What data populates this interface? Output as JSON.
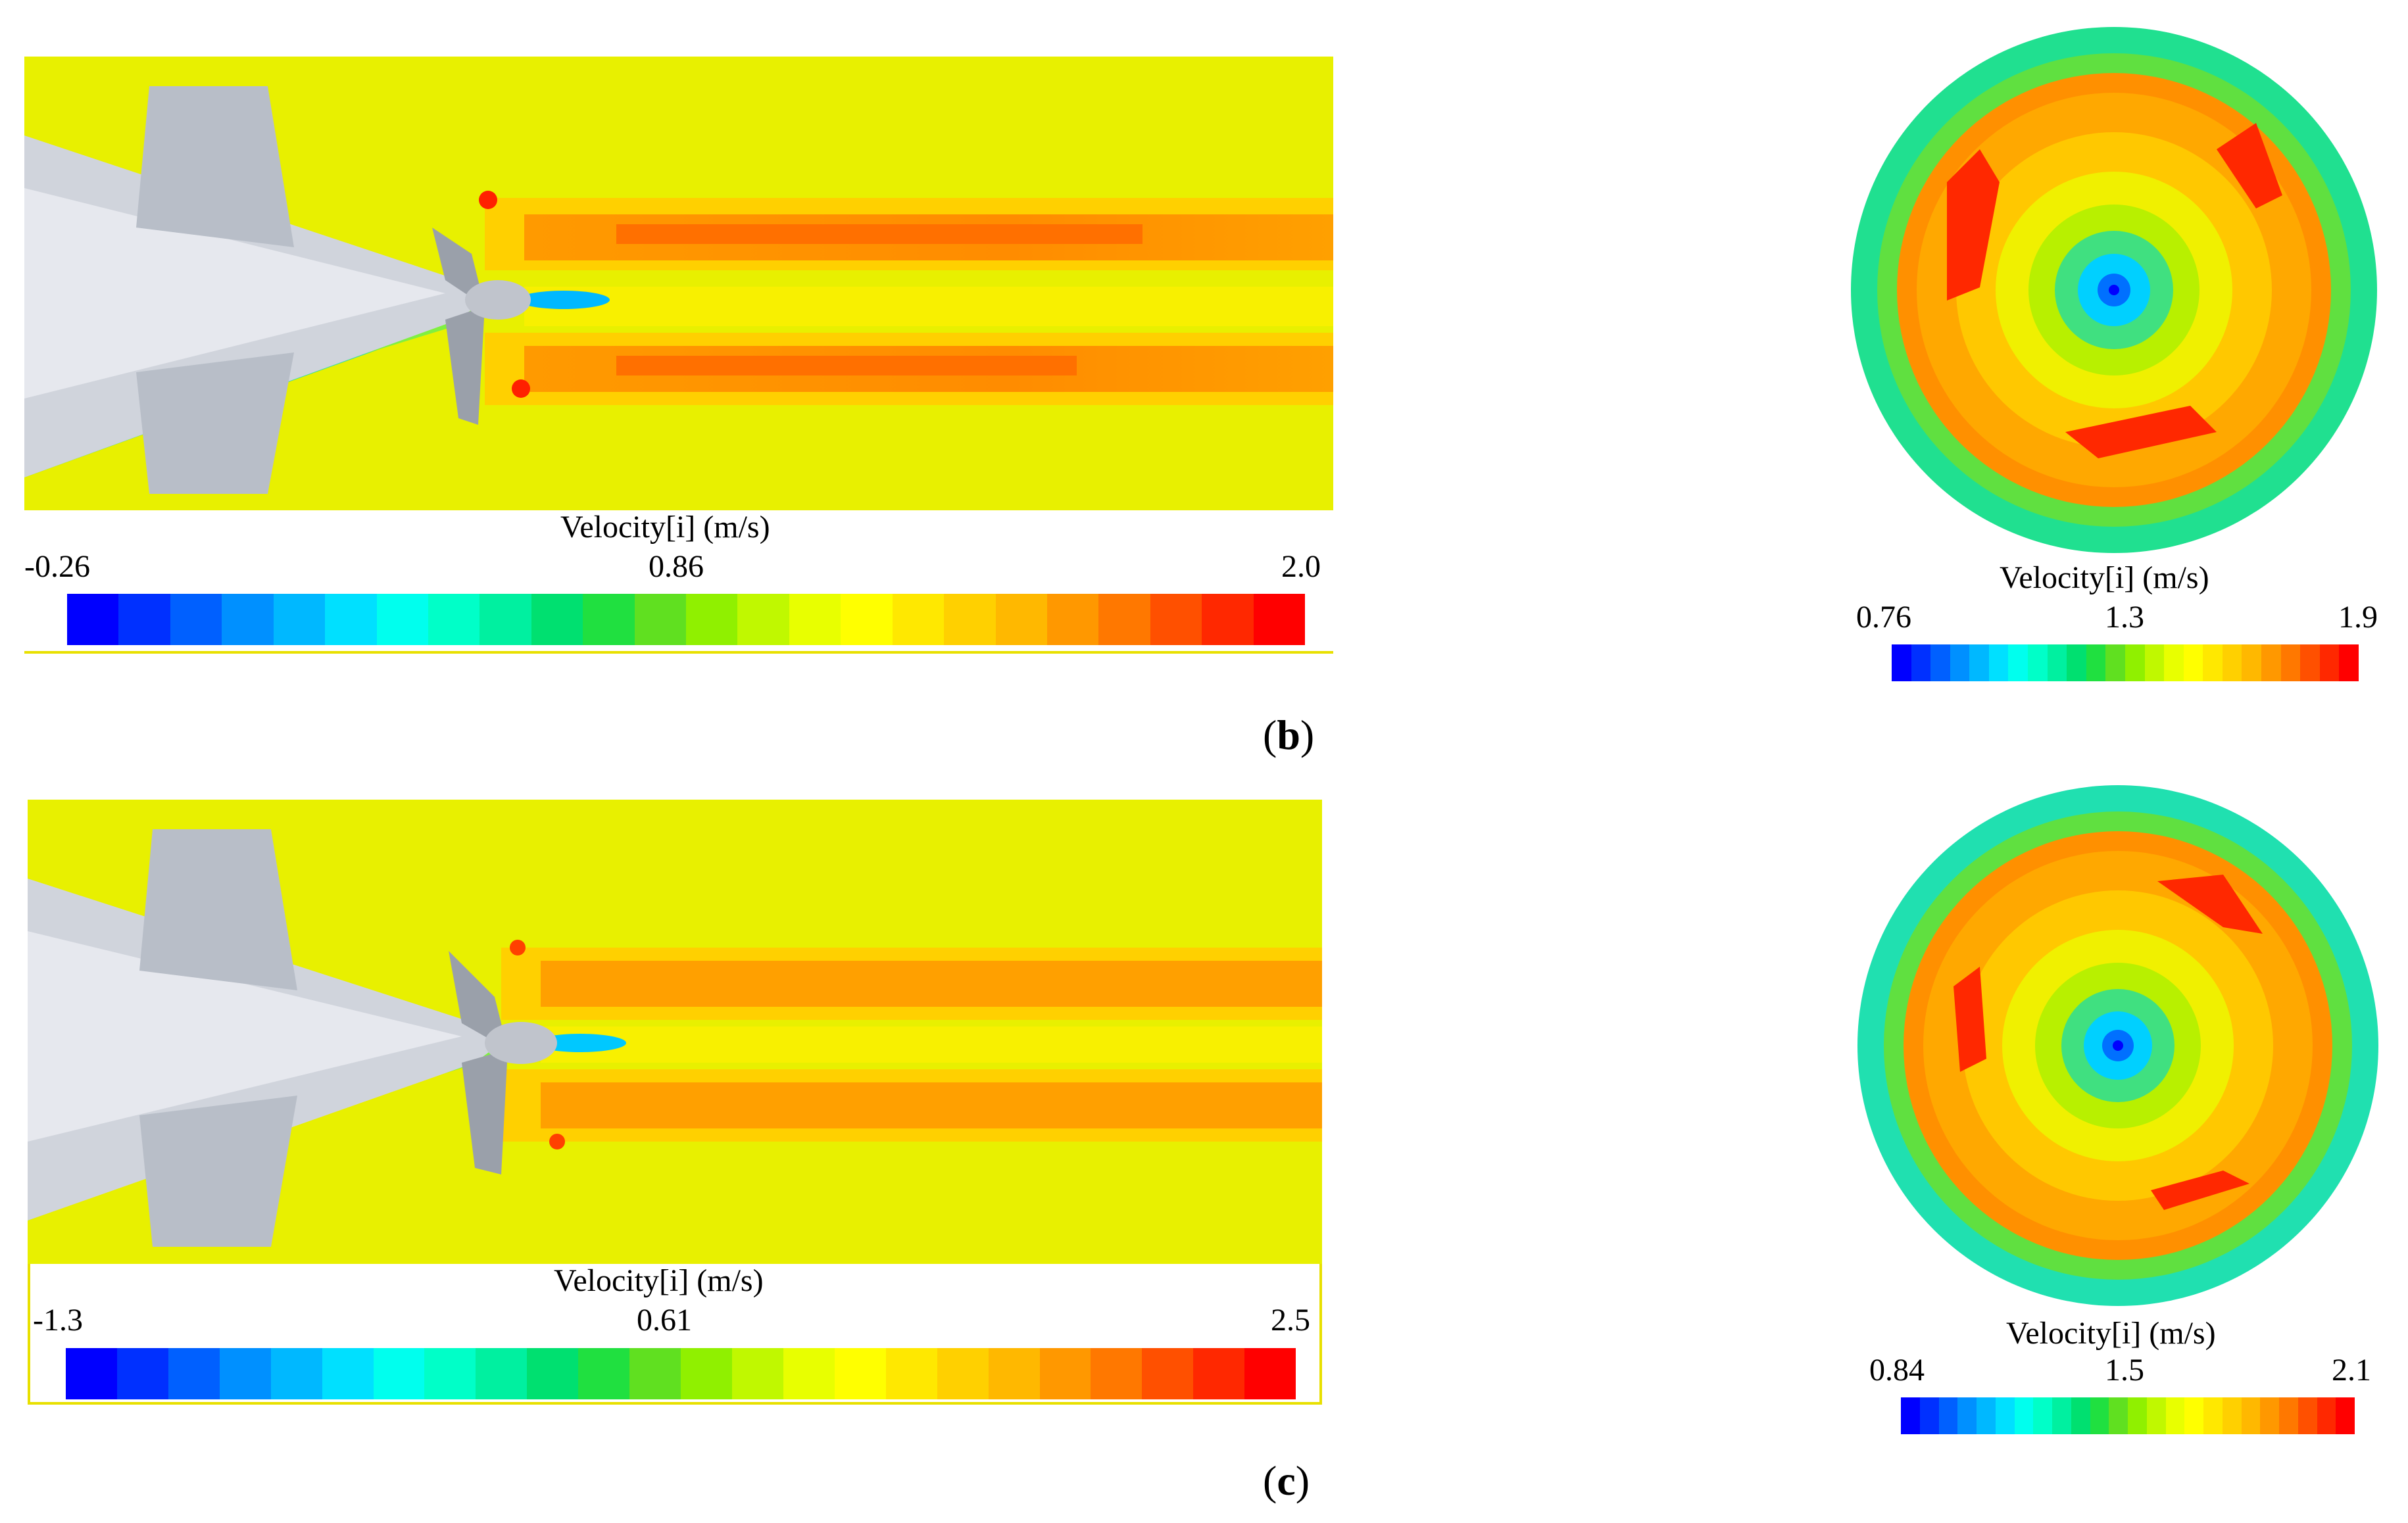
{
  "panels": [
    {
      "tag_open": "(",
      "tag_letter": "b",
      "tag_close": ")",
      "side_view": {
        "legend_title": "Velocity[i] (m/s)",
        "ticks": [
          "-0.26",
          "0.86",
          "2.0"
        ]
      },
      "front_view": {
        "legend_title": "Velocity[i] (m/s)",
        "ticks": [
          "0.76",
          "1.3",
          "1.9"
        ]
      }
    },
    {
      "tag_open": "(",
      "tag_letter": "c",
      "tag_close": ")",
      "side_view": {
        "legend_title": "Velocity[i] (m/s)",
        "ticks": [
          "-1.3",
          "0.61",
          "2.5"
        ]
      },
      "front_view": {
        "legend_title": "Velocity[i] (m/s)",
        "ticks": [
          "0.84",
          "1.5",
          "2.1"
        ]
      }
    }
  ],
  "colormap": [
    "#0000ff",
    "#0030ff",
    "#0060ff",
    "#0090ff",
    "#00b8ff",
    "#00e0ff",
    "#00ffee",
    "#00ffc8",
    "#00f0a0",
    "#00e070",
    "#20e040",
    "#60e020",
    "#90f000",
    "#c0f800",
    "#e8ff00",
    "#ffff00",
    "#ffe800",
    "#ffd000",
    "#ffb800",
    "#ff9800",
    "#ff7800",
    "#ff5000",
    "#ff2800",
    "#ff0000"
  ],
  "colors": {
    "background_field": "#e8f000",
    "wake": "#ffa000",
    "wake_core": "#ff7800",
    "hull": "#c8ccd4",
    "border": "#e8e000"
  }
}
